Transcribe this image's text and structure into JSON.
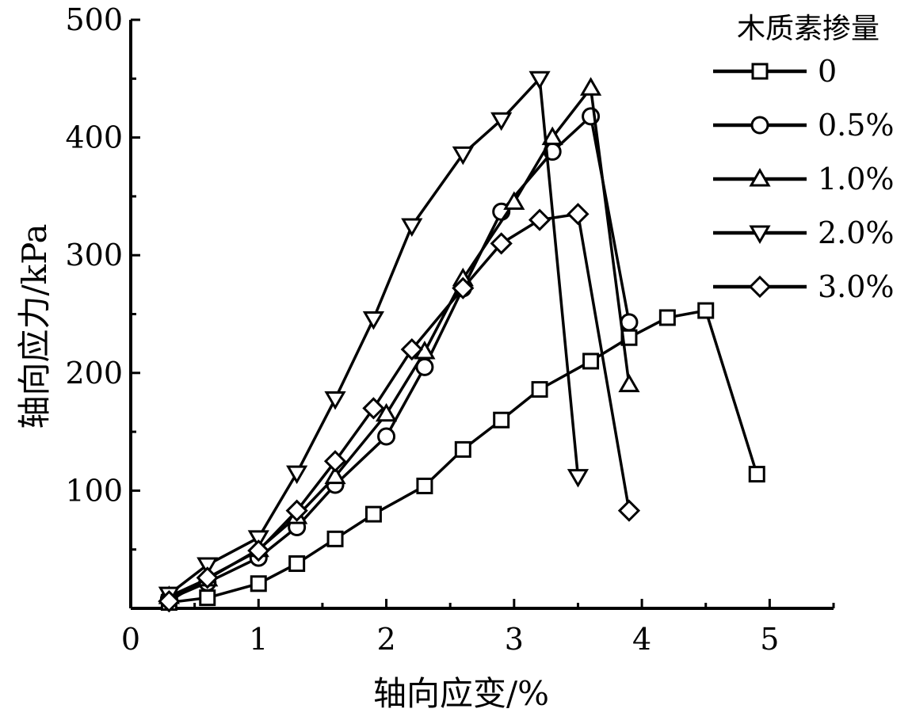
{
  "chart_data": {
    "type": "line",
    "title": "",
    "xlabel": "轴向应变/%",
    "ylabel": "轴向应力/kPa",
    "xlim": [
      0,
      5.5
    ],
    "ylim": [
      0,
      500
    ],
    "x_ticks": [
      0,
      1,
      2,
      3,
      4,
      5
    ],
    "y_ticks": [
      100,
      200,
      300,
      400,
      500
    ],
    "grid": false,
    "legend": {
      "title": "木质素掺量",
      "placement": "top-right"
    },
    "series": [
      {
        "name": "0",
        "marker": "square",
        "x": [
          0.3,
          0.6,
          1.0,
          1.3,
          1.6,
          1.9,
          2.3,
          2.6,
          2.9,
          3.2,
          3.6,
          3.9,
          4.2,
          4.5,
          4.9
        ],
        "y": [
          5,
          9,
          21,
          38,
          59,
          80,
          104,
          135,
          160,
          186,
          210,
          230,
          247,
          253,
          114
        ]
      },
      {
        "name": "0.5%",
        "marker": "circle",
        "x": [
          0.3,
          0.6,
          1.0,
          1.3,
          1.6,
          2.0,
          2.3,
          2.6,
          2.9,
          3.3,
          3.6,
          3.9
        ],
        "y": [
          8,
          22,
          43,
          69,
          105,
          146,
          205,
          272,
          337,
          388,
          418,
          243
        ]
      },
      {
        "name": "1.0%",
        "marker": "triangle-up",
        "x": [
          0.3,
          0.6,
          1.0,
          1.3,
          1.6,
          2.0,
          2.3,
          2.6,
          3.0,
          3.3,
          3.6,
          3.9
        ],
        "y": [
          10,
          25,
          50,
          78,
          112,
          165,
          218,
          280,
          345,
          400,
          442,
          190
        ]
      },
      {
        "name": "2.0%",
        "marker": "triangle-down",
        "x": [
          0.3,
          0.6,
          1.0,
          1.3,
          1.6,
          1.9,
          2.2,
          2.6,
          2.9,
          3.2,
          3.5
        ],
        "y": [
          12,
          37,
          60,
          115,
          178,
          246,
          325,
          386,
          415,
          450,
          112
        ]
      },
      {
        "name": "3.0%",
        "marker": "diamond",
        "x": [
          0.3,
          0.6,
          1.0,
          1.3,
          1.6,
          1.9,
          2.2,
          2.6,
          2.9,
          3.2,
          3.5,
          3.9
        ],
        "y": [
          6,
          26,
          49,
          83,
          125,
          170,
          220,
          272,
          310,
          330,
          335,
          83
        ]
      }
    ]
  }
}
